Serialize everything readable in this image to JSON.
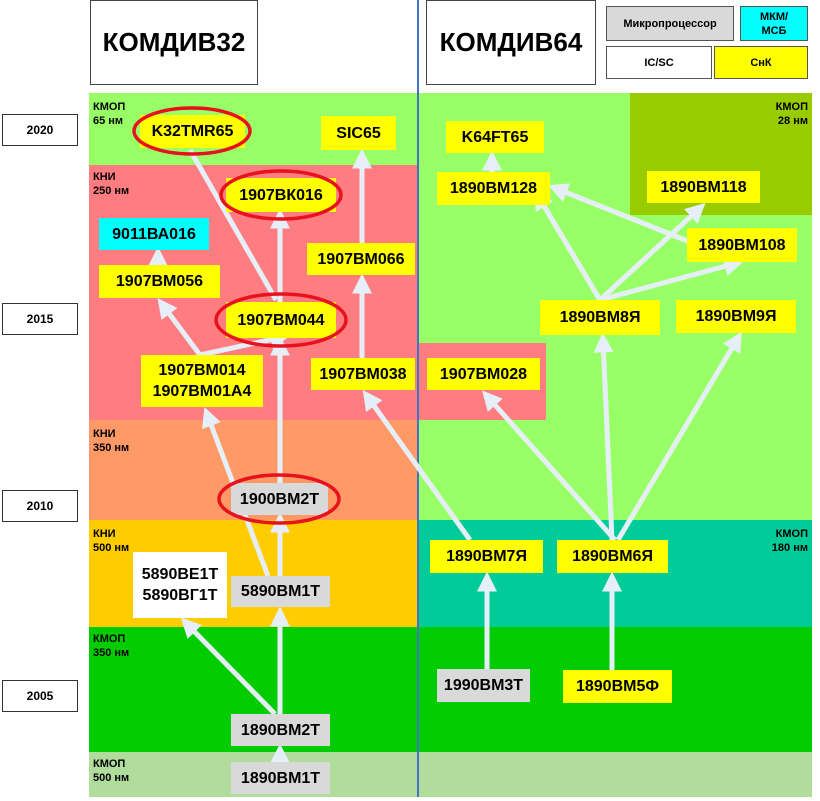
{
  "headers": {
    "left": "КОМДИВ32",
    "right": "КОМДИВ64"
  },
  "legend": {
    "microprocessor": "Микропроцессор",
    "mkm": "МКМ/\nМСБ",
    "icsc": "IC/SC",
    "snk": "СнК"
  },
  "years": [
    "2020",
    "2015",
    "2010",
    "2005"
  ],
  "tech": {
    "l65": "КМОП\n65 нм",
    "l250": "КНИ\n250 нм",
    "l350": "КНИ\n350 нм",
    "l500": "КНИ\n500 нм",
    "lc350": "КМОП\n350 нм",
    "lc500": "КМОП\n500 нм",
    "r28": "КМОП\n28 нм",
    "r180": "КМОП\n180 нм"
  },
  "chips": {
    "k32tmr65": "K32TMR65",
    "sic65": "SIC65",
    "bk016": "1907ВК016",
    "ba016": "9011ВА016",
    "bm056": "1907ВМ056",
    "bm066": "1907ВМ066",
    "bm044": "1907ВМ044",
    "bm014": "1907ВМ014\n1907ВМ01А4",
    "bm038": "1907ВМ038",
    "bm028": "1907ВМ028",
    "bm2t1900": "1900ВМ2Т",
    "be1t": "5890ВЕ1Т\n5890ВГ1Т",
    "bm1t5890": "5890ВМ1Т",
    "bm2t1890": "1890ВМ2Т",
    "bm1t1890": "1890ВМ1Т",
    "k64ft65": "K64FT65",
    "bm128": "1890ВМ128",
    "bm118": "1890ВМ118",
    "bm108": "1890ВМ108",
    "bm8": "1890ВМ8Я",
    "bm9": "1890ВМ9Я",
    "bm7": "1890ВМ7Я",
    "bm6": "1890ВМ6Я",
    "bm3t": "1990ВМ3Т",
    "bm5f": "1890ВМ5Ф"
  },
  "colors": {
    "microprocessor": "#d9d9d9",
    "mkm": "#00ffff",
    "icsc": "#ffffff",
    "snk": "#ffff00",
    "highlight": "#e8121c",
    "divider": "#4472c4"
  }
}
